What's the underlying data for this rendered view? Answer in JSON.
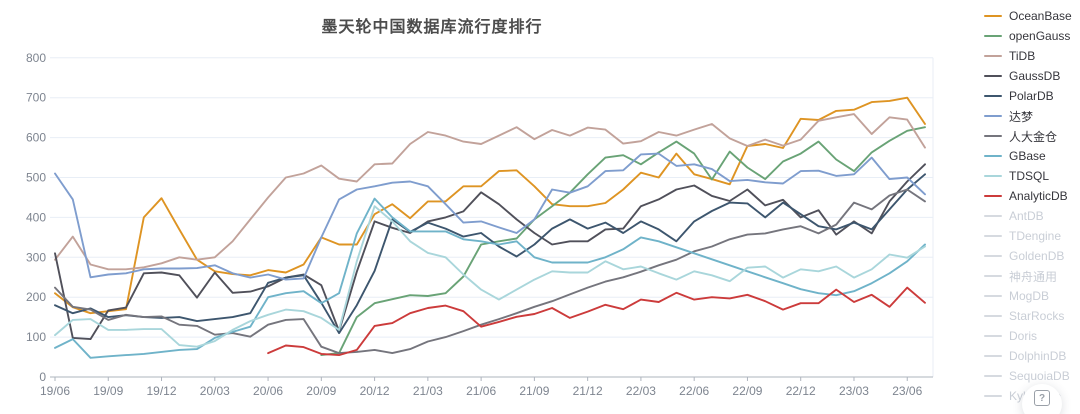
{
  "chart_data": {
    "type": "line",
    "title": "墨天轮中国数据库流行度排行",
    "xlabel": "",
    "ylabel": "",
    "ylim": [
      0,
      800
    ],
    "ytick_step": 100,
    "grid": true,
    "legend_position": "right",
    "x_tick_labels": [
      "19/06",
      "19/09",
      "19/12",
      "20/03",
      "20/06",
      "20/09",
      "20/12",
      "21/03",
      "21/06",
      "21/09",
      "21/12",
      "22/03",
      "22/06",
      "22/09",
      "22/12",
      "23/03",
      "23/06"
    ],
    "points_per_tick_interval": 3,
    "monthly_points": 50,
    "series": [
      {
        "key": "oceanbase",
        "name": "OceanBase",
        "color": "#DE9423",
        "values": [
          210,
          175,
          160,
          165,
          170,
          400,
          448,
          370,
          294,
          265,
          258,
          255,
          268,
          262,
          282,
          350,
          332,
          332,
          408,
          433,
          398,
          440,
          440,
          478,
          478,
          516,
          518,
          478,
          433,
          428,
          428,
          436,
          470,
          512,
          500,
          560,
          508,
          496,
          483,
          579,
          584,
          574,
          647,
          644,
          667,
          670,
          689,
          692,
          700,
          634
        ]
      },
      {
        "key": "opengauss",
        "name": "openGauss",
        "color": "#69A376",
        "values": [
          null,
          null,
          null,
          null,
          null,
          null,
          null,
          null,
          null,
          null,
          null,
          null,
          null,
          null,
          null,
          55,
          60,
          150,
          185,
          195,
          205,
          203,
          210,
          252,
          332,
          340,
          347,
          395,
          428,
          462,
          508,
          550,
          556,
          533,
          563,
          590,
          560,
          495,
          565,
          525,
          496,
          540,
          560,
          590,
          545,
          516,
          563,
          592,
          617,
          626
        ]
      },
      {
        "key": "tidb",
        "name": "TiDB",
        "color": "#C2A29A",
        "values": [
          294,
          352,
          282,
          270,
          270,
          275,
          285,
          300,
          294,
          300,
          340,
          395,
          450,
          500,
          510,
          530,
          497,
          490,
          533,
          535,
          584,
          614,
          605,
          590,
          584,
          605,
          626,
          596,
          619,
          605,
          625,
          620,
          585,
          591,
          614,
          605,
          620,
          634,
          598,
          579,
          595,
          580,
          595,
          642,
          651,
          659,
          609,
          651,
          645,
          575
        ]
      },
      {
        "key": "gaussdb",
        "name": "GaussDB",
        "color": "#50505A",
        "values": [
          310,
          98,
          95,
          167,
          174,
          260,
          262,
          255,
          199,
          262,
          211,
          214,
          227,
          249,
          257,
          230,
          115,
          264,
          390,
          374,
          361,
          390,
          400,
          415,
          463,
          433,
          395,
          361,
          332,
          340,
          340,
          370,
          372,
          428,
          445,
          470,
          480,
          454,
          441,
          470,
          430,
          444,
          400,
          418,
          357,
          390,
          360,
          440,
          490,
          533
        ]
      },
      {
        "key": "polardb",
        "name": "PolarDB",
        "color": "#3D566E",
        "values": [
          180,
          160,
          172,
          150,
          155,
          150,
          148,
          150,
          140,
          145,
          150,
          160,
          236,
          249,
          255,
          186,
          110,
          180,
          266,
          395,
          364,
          387,
          372,
          352,
          361,
          327,
          302,
          332,
          372,
          395,
          372,
          387,
          361,
          390,
          370,
          340,
          390,
          416,
          437,
          435,
          400,
          437,
          408,
          378,
          370,
          387,
          370,
          420,
          470,
          508
        ]
      },
      {
        "key": "dameng",
        "name": "达梦",
        "color": "#7F9DCE",
        "values": [
          510,
          445,
          250,
          257,
          260,
          270,
          272,
          272,
          273,
          280,
          260,
          249,
          257,
          244,
          247,
          350,
          445,
          470,
          478,
          487,
          490,
          478,
          433,
          387,
          390,
          375,
          361,
          395,
          470,
          462,
          478,
          516,
          518,
          558,
          560,
          529,
          533,
          521,
          491,
          494,
          488,
          485,
          516,
          517,
          504,
          508,
          550,
          496,
          500,
          458
        ]
      },
      {
        "key": "renda-jincang",
        "name": "人大金仓",
        "color": "#75757D",
        "values": [
          224,
          176,
          169,
          143,
          156,
          150,
          152,
          131,
          128,
          106,
          110,
          101,
          131,
          143,
          145,
          76,
          60,
          63,
          68,
          60,
          70,
          89,
          100,
          115,
          131,
          145,
          160,
          176,
          190,
          207,
          224,
          239,
          250,
          264,
          280,
          294,
          315,
          327,
          345,
          357,
          360,
          370,
          378,
          360,
          382,
          437,
          420,
          455,
          470,
          440
        ]
      },
      {
        "key": "gbase",
        "name": "GBase",
        "color": "#6FB3C9",
        "values": [
          73,
          95,
          48,
          52,
          55,
          58,
          63,
          68,
          70,
          98,
          113,
          126,
          200,
          210,
          215,
          185,
          210,
          360,
          447,
          400,
          365,
          365,
          365,
          345,
          340,
          332,
          340,
          300,
          287,
          287,
          287,
          300,
          320,
          350,
          340,
          325,
          310,
          295,
          280,
          265,
          250,
          235,
          220,
          210,
          205,
          215,
          235,
          260,
          290,
          332
        ]
      },
      {
        "key": "tdsql",
        "name": "TDSQL",
        "color": "#A9D6DB",
        "values": [
          105,
          143,
          145,
          118,
          118,
          120,
          120,
          80,
          76,
          90,
          118,
          140,
          156,
          169,
          165,
          148,
          118,
          290,
          428,
          390,
          340,
          311,
          300,
          257,
          219,
          194,
          219,
          244,
          265,
          262,
          262,
          290,
          270,
          277,
          260,
          244,
          265,
          255,
          240,
          274,
          277,
          249,
          270,
          265,
          277,
          249,
          270,
          307,
          299,
          327
        ]
      },
      {
        "key": "analyticdb",
        "name": "AnalyticDB",
        "color": "#CC3B3B",
        "values": [
          null,
          null,
          null,
          null,
          null,
          null,
          null,
          null,
          null,
          null,
          null,
          null,
          60,
          79,
          75,
          58,
          55,
          68,
          128,
          135,
          160,
          173,
          179,
          165,
          126,
          138,
          151,
          158,
          173,
          148,
          164,
          181,
          170,
          194,
          188,
          211,
          194,
          200,
          197,
          206,
          190,
          169,
          185,
          185,
          219,
          188,
          206,
          176,
          224,
          186
        ]
      }
    ],
    "disabled_series": [
      {
        "key": "antdb",
        "name": "AntDB"
      },
      {
        "key": "tdengine",
        "name": "TDengine"
      },
      {
        "key": "goldendb",
        "name": "GoldenDB"
      },
      {
        "key": "shenzhou-tongyong",
        "name": "神舟通用"
      },
      {
        "key": "mogdb",
        "name": "MogDB"
      },
      {
        "key": "starrocks",
        "name": "StarRocks"
      },
      {
        "key": "doris",
        "name": "Doris"
      },
      {
        "key": "dolphindb",
        "name": "DolphinDB"
      },
      {
        "key": "sequoiadb",
        "name": "SequoiaDB"
      },
      {
        "key": "kyligence",
        "name": "Kyligence"
      }
    ]
  },
  "colors": {
    "grid_line": "#E8EEF6",
    "axis_line": "#AEB4BE",
    "tick_text": "#7E8590",
    "title_text": "#4C4C4C",
    "disabled_swatch": "#D6DAE0",
    "disabled_text": "#C9CED6"
  },
  "help_button": {
    "glyph": "?"
  }
}
